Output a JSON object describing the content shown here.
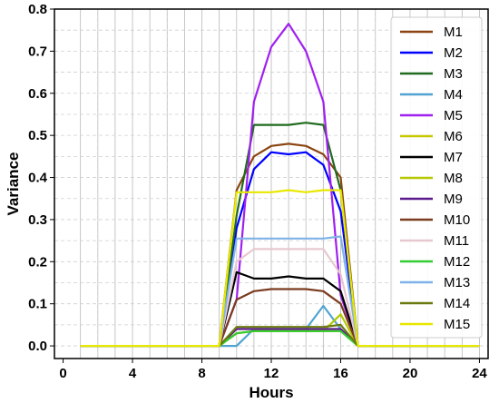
{
  "chart_data": {
    "type": "line",
    "title": "",
    "xlabel": "Hours",
    "ylabel": "Variance",
    "xlim": [
      -0.5,
      24.5
    ],
    "ylim": [
      -0.03,
      0.8
    ],
    "xticks": [
      0,
      4,
      8,
      12,
      16,
      20,
      24
    ],
    "xtick_labels": [
      "0",
      "4",
      "8",
      "12",
      "16",
      "20",
      "24"
    ],
    "yticks": [
      0.0,
      0.1,
      0.2,
      0.3,
      0.4,
      0.5,
      0.6,
      0.7,
      0.8
    ],
    "ytick_labels": [
      "0.0",
      "0.1",
      "0.2",
      "0.3",
      "0.4",
      "0.5",
      "0.6",
      "0.7",
      "0.8"
    ],
    "grid": true,
    "legend_position": "right",
    "x": [
      1,
      2,
      3,
      4,
      5,
      6,
      7,
      8,
      9,
      10,
      11,
      12,
      13,
      14,
      15,
      16,
      17,
      18,
      19,
      20,
      21,
      22,
      23,
      24
    ],
    "series": [
      {
        "name": "M1",
        "color": "#8B4513",
        "values": [
          0,
          0,
          0,
          0,
          0,
          0,
          0,
          0,
          0,
          0.37,
          0.45,
          0.475,
          0.48,
          0.475,
          0.455,
          0.4,
          0,
          0,
          0,
          0,
          0,
          0,
          0,
          0
        ]
      },
      {
        "name": "M2",
        "color": "#0000FF",
        "values": [
          0,
          0,
          0,
          0,
          0,
          0,
          0,
          0,
          0,
          0.28,
          0.42,
          0.46,
          0.455,
          0.46,
          0.43,
          0.32,
          0,
          0,
          0,
          0,
          0,
          0,
          0,
          0
        ]
      },
      {
        "name": "M3",
        "color": "#1F6B1F",
        "values": [
          0,
          0,
          0,
          0,
          0,
          0,
          0,
          0,
          0,
          0.31,
          0.525,
          0.525,
          0.525,
          0.53,
          0.525,
          0.37,
          0,
          0,
          0,
          0,
          0,
          0,
          0,
          0
        ]
      },
      {
        "name": "M4",
        "color": "#4FA3D1",
        "values": [
          0,
          0,
          0,
          0,
          0,
          0,
          0,
          0,
          0,
          0,
          0.04,
          0.04,
          0.04,
          0.04,
          0.095,
          0.04,
          0,
          0,
          0,
          0,
          0,
          0,
          0,
          0
        ]
      },
      {
        "name": "M5",
        "color": "#A020F0",
        "values": [
          0,
          0,
          0,
          0,
          0,
          0,
          0,
          0,
          0,
          0.11,
          0.58,
          0.71,
          0.765,
          0.7,
          0.58,
          0.12,
          0,
          0,
          0,
          0,
          0,
          0,
          0,
          0
        ]
      },
      {
        "name": "M6",
        "color": "#C8C800",
        "values": [
          0,
          0,
          0,
          0,
          0,
          0,
          0,
          0,
          0,
          0.03,
          0.035,
          0.035,
          0.035,
          0.035,
          0.035,
          0.035,
          0,
          0,
          0,
          0,
          0,
          0,
          0,
          0
        ]
      },
      {
        "name": "M7",
        "color": "#000000",
        "values": [
          0,
          0,
          0,
          0,
          0,
          0,
          0,
          0,
          0,
          0.175,
          0.16,
          0.16,
          0.165,
          0.16,
          0.16,
          0.13,
          0,
          0,
          0,
          0,
          0,
          0,
          0,
          0
        ]
      },
      {
        "name": "M8",
        "color": "#B5C800",
        "values": [
          0,
          0,
          0,
          0,
          0,
          0,
          0,
          0,
          0,
          0.03,
          0.035,
          0.035,
          0.035,
          0.035,
          0.035,
          0.075,
          0,
          0,
          0,
          0,
          0,
          0,
          0,
          0
        ]
      },
      {
        "name": "M9",
        "color": "#5B1A8B",
        "values": [
          0,
          0,
          0,
          0,
          0,
          0,
          0,
          0,
          0,
          0.04,
          0.04,
          0.04,
          0.04,
          0.04,
          0.04,
          0.04,
          0,
          0,
          0,
          0,
          0,
          0,
          0,
          0
        ]
      },
      {
        "name": "M10",
        "color": "#7A3B1E",
        "values": [
          0,
          0,
          0,
          0,
          0,
          0,
          0,
          0,
          0,
          0.11,
          0.13,
          0.135,
          0.135,
          0.135,
          0.13,
          0.1,
          0,
          0,
          0,
          0,
          0,
          0,
          0,
          0
        ]
      },
      {
        "name": "M11",
        "color": "#E8C8D0",
        "values": [
          0,
          0,
          0,
          0,
          0,
          0,
          0,
          0,
          0,
          0.2,
          0.23,
          0.23,
          0.23,
          0.23,
          0.23,
          0.17,
          0,
          0,
          0,
          0,
          0,
          0,
          0,
          0
        ]
      },
      {
        "name": "M12",
        "color": "#33CC33",
        "values": [
          0,
          0,
          0,
          0,
          0,
          0,
          0,
          0,
          0,
          0.03,
          0.035,
          0.035,
          0.035,
          0.035,
          0.035,
          0.035,
          0,
          0,
          0,
          0,
          0,
          0,
          0,
          0
        ]
      },
      {
        "name": "M13",
        "color": "#7FB2E8",
        "values": [
          0,
          0,
          0,
          0,
          0,
          0,
          0,
          0,
          0,
          0.255,
          0.255,
          0.255,
          0.255,
          0.255,
          0.255,
          0.26,
          0,
          0,
          0,
          0,
          0,
          0,
          0,
          0
        ]
      },
      {
        "name": "M14",
        "color": "#6B7A10",
        "values": [
          0,
          0,
          0,
          0,
          0,
          0,
          0,
          0,
          0,
          0.045,
          0.045,
          0.045,
          0.045,
          0.045,
          0.045,
          0.05,
          0,
          0,
          0,
          0,
          0,
          0,
          0,
          0
        ]
      },
      {
        "name": "M15",
        "color": "#E8E800",
        "values": [
          0,
          0,
          0,
          0,
          0,
          0,
          0,
          0,
          0,
          0.365,
          0.365,
          0.365,
          0.37,
          0.365,
          0.37,
          0.37,
          0,
          0,
          0,
          0,
          0,
          0,
          0,
          0
        ]
      }
    ]
  }
}
